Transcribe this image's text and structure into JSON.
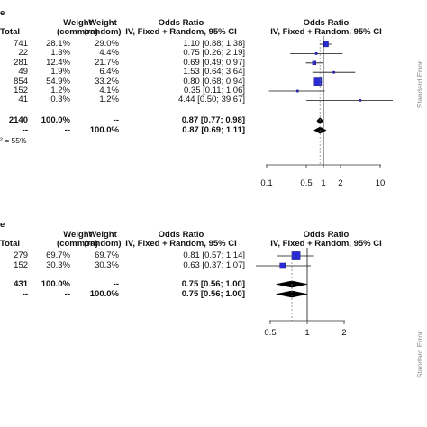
{
  "chart_data": [
    {
      "type": "forest",
      "headers": {
        "total": "Total",
        "weight_common": [
          "Weight",
          "(common)"
        ],
        "weight_random": [
          "Weight",
          "(random)"
        ],
        "or": [
          "Odds Ratio",
          "IV, Fixed + Random, 95% CI"
        ],
        "plot": [
          "Odds Ratio",
          "IV, Fixed + Random, 95% CI"
        ],
        "cut_label": "e"
      },
      "rows": [
        {
          "total": "741",
          "wc": "28.1%",
          "wr": "29.0%",
          "or_text": "1.10 [0.88; 1.38]",
          "or": 1.1,
          "lo": 0.88,
          "hi": 1.38
        },
        {
          "total": "22",
          "wc": "1.3%",
          "wr": "4.4%",
          "or_text": "0.75 [0.26; 2.19]",
          "or": 0.75,
          "lo": 0.26,
          "hi": 2.19
        },
        {
          "total": "281",
          "wc": "12.4%",
          "wr": "21.7%",
          "or_text": "0.69 [0.49; 0.97]",
          "or": 0.69,
          "lo": 0.49,
          "hi": 0.97
        },
        {
          "total": "49",
          "wc": "1.9%",
          "wr": "6.4%",
          "or_text": "1.53 [0.64; 3.64]",
          "or": 1.53,
          "lo": 0.64,
          "hi": 3.64
        },
        {
          "total": "854",
          "wc": "54.9%",
          "wr": "33.2%",
          "or_text": "0.80 [0.68; 0.94]",
          "or": 0.8,
          "lo": 0.68,
          "hi": 0.94
        },
        {
          "total": "152",
          "wc": "1.2%",
          "wr": "4.1%",
          "or_text": "0.35 [0.11; 1.06]",
          "or": 0.35,
          "lo": 0.11,
          "hi": 1.06
        },
        {
          "total": "41",
          "wc": "0.3%",
          "wr": "1.2%",
          "or_text": "4.44 [0.50; 39.67]",
          "or": 4.44,
          "lo": 0.5,
          "hi": 39.67
        }
      ],
      "summary_common": {
        "total": "2140",
        "wc": "100.0%",
        "wr": "--",
        "or_text": "0.87 [0.77; 0.98]",
        "or": 0.87,
        "lo": 0.77,
        "hi": 0.98
      },
      "summary_random": {
        "total": "--",
        "wc": "--",
        "wr": "100.0%",
        "or_text": "0.87 [0.69; 1.11]",
        "or": 0.87,
        "lo": 0.69,
        "hi": 1.11
      },
      "heterogeneity": "² = 55%",
      "x_scale": "log",
      "xlim": [
        0.1,
        10
      ],
      "x_ticks": [
        0.1,
        0.5,
        1,
        2,
        10
      ],
      "x_tick_labels": [
        "0.1",
        "0.5",
        "1",
        "2",
        "10"
      ],
      "side_label": "Standard Error"
    },
    {
      "type": "forest",
      "headers": {
        "total": "Total",
        "weight_common": [
          "Weight",
          "(common)"
        ],
        "weight_random": [
          "Weight",
          "(random)"
        ],
        "or": [
          "Odds Ratio",
          "IV, Fixed + Random, 95% CI"
        ],
        "plot": [
          "Odds Ratio",
          "IV, Fixed + Random, 95% CI"
        ],
        "cut_label": "e"
      },
      "rows": [
        {
          "total": "279",
          "wc": "69.7%",
          "wr": "69.7%",
          "or_text": "0.81 [0.57; 1.14]",
          "or": 0.81,
          "lo": 0.57,
          "hi": 1.14
        },
        {
          "total": "152",
          "wc": "30.3%",
          "wr": "30.3%",
          "or_text": "0.63 [0.37; 1.07]",
          "or": 0.63,
          "lo": 0.37,
          "hi": 1.07
        }
      ],
      "summary_common": {
        "total": "431",
        "wc": "100.0%",
        "wr": "--",
        "or_text": "0.75 [0.56; 1.00]",
        "or": 0.75,
        "lo": 0.56,
        "hi": 1.0
      },
      "summary_random": {
        "total": "--",
        "wc": "--",
        "wr": "100.0%",
        "or_text": "0.75 [0.56; 1.00]",
        "or": 0.75,
        "lo": 0.56,
        "hi": 1.0
      },
      "x_scale": "log",
      "xlim": [
        0.5,
        2
      ],
      "x_ticks": [
        0.5,
        1,
        2
      ],
      "x_tick_labels": [
        "0.5",
        "1",
        "2"
      ],
      "side_label": "Standard Error"
    }
  ],
  "colors": {
    "square": "#2b2bd6",
    "line": "#111111",
    "axis": "#333333",
    "side_text": "#888888"
  }
}
